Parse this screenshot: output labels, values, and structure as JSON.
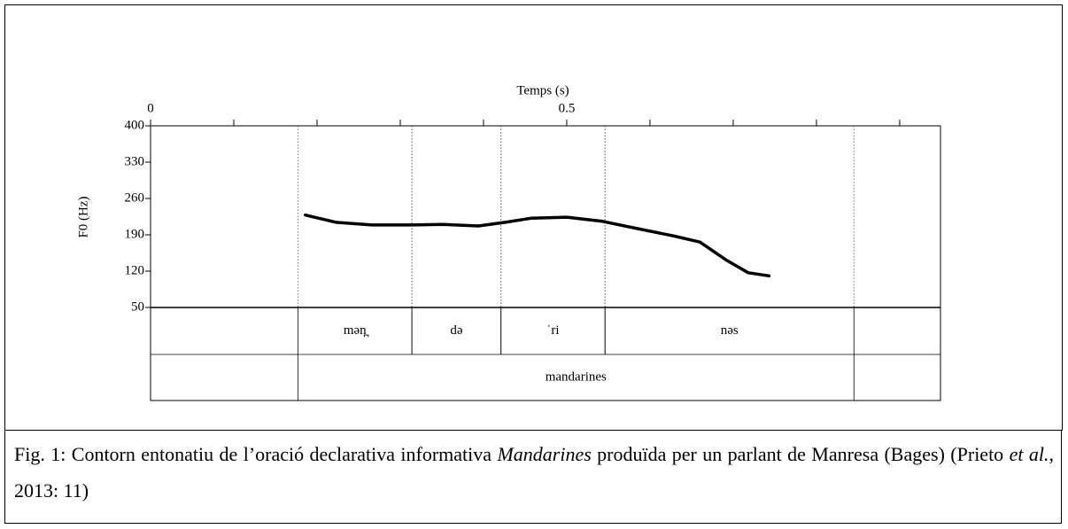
{
  "chart_data": {
    "type": "line",
    "xlabel": "Temps (s)",
    "ylabel": "F0 (Hz)",
    "xlim": [
      0,
      0.949
    ],
    "xticks": [
      0,
      0.5
    ],
    "xminor": [
      0.1,
      0.2,
      0.3,
      0.4,
      0.6,
      0.7,
      0.8,
      0.9
    ],
    "ylim": [
      50,
      400
    ],
    "yticks": [
      400,
      330,
      260,
      190,
      120,
      50
    ],
    "color": "#000000",
    "x": [
      0.186,
      0.223,
      0.266,
      0.314,
      0.351,
      0.394,
      0.426,
      0.457,
      0.5,
      0.543,
      0.585,
      0.628,
      0.66,
      0.691,
      0.718,
      0.743
    ],
    "values": [
      228,
      214,
      209,
      209,
      210,
      207,
      214,
      222,
      224,
      216,
      202,
      188,
      176,
      142,
      117,
      111
    ],
    "tiers": [
      {
        "intervals": [
          {
            "start": 0.177,
            "end": 0.314,
            "label": "mən̪"
          },
          {
            "start": 0.314,
            "end": 0.421,
            "label": "də"
          },
          {
            "start": 0.421,
            "end": 0.546,
            "label": "ˈri"
          },
          {
            "start": 0.546,
            "end": 0.845,
            "label": "nəs"
          }
        ]
      },
      {
        "intervals": [
          {
            "start": 0.177,
            "end": 0.845,
            "label": "mandarines"
          }
        ]
      }
    ]
  },
  "caption": [
    "Fig. 1: Contorn entonatiu de l’oració declarativa informativa ",
    "Mandarines",
    " produïda per un parlant de Manresa (Bages) (Prieto ",
    "et al.",
    ", 2013: 11)"
  ]
}
